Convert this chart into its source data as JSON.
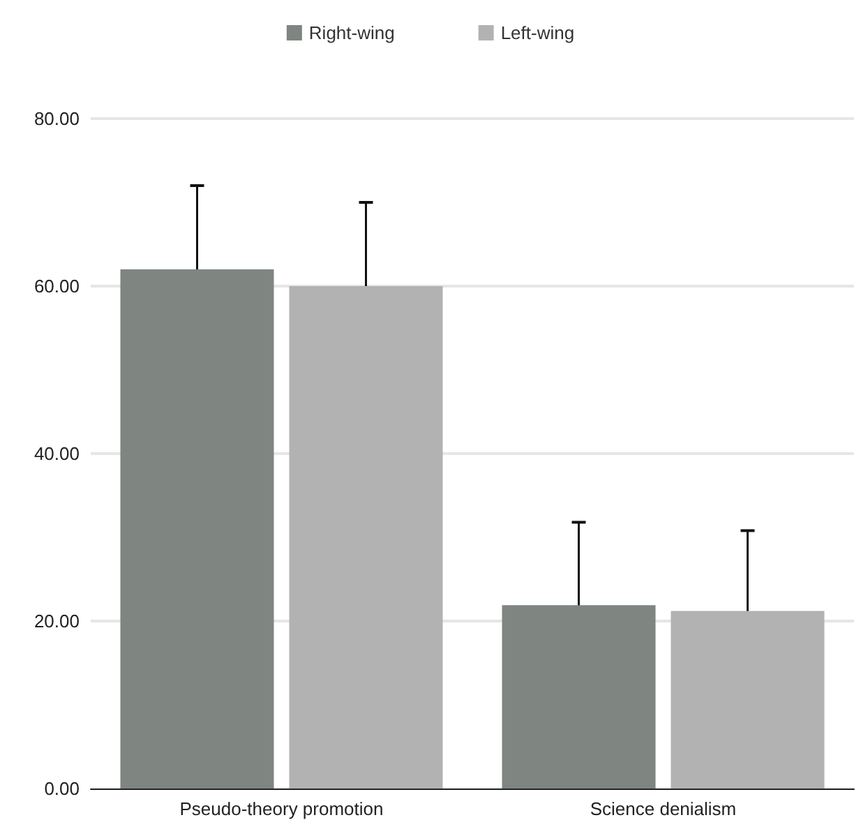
{
  "chart_data": {
    "type": "bar",
    "categories": [
      "Pseudo-theory promotion",
      "Science denialism"
    ],
    "series": [
      {
        "name": "Right-wing",
        "color": "#7f8580",
        "values": [
          62,
          21.9
        ],
        "errors": [
          10,
          9.9
        ]
      },
      {
        "name": "Left-wing",
        "color": "#b2b2b2",
        "values": [
          60,
          21.2
        ],
        "errors": [
          10,
          9.6
        ]
      }
    ],
    "ylim": [
      0,
      80
    ],
    "yticks": [
      {
        "value": 0,
        "label": "0.00"
      },
      {
        "value": 20,
        "label": "20.00"
      },
      {
        "value": 40,
        "label": "40.00"
      },
      {
        "value": 60,
        "label": "60.00"
      },
      {
        "value": 80,
        "label": "80.00"
      }
    ],
    "grid": "y",
    "legend": "top"
  }
}
